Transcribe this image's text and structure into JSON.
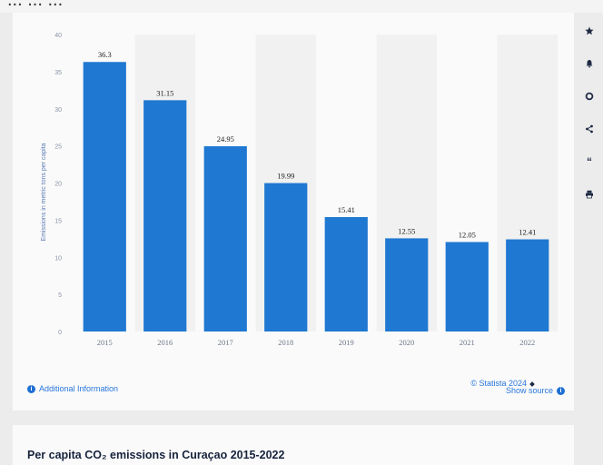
{
  "top_text": "... ... ...",
  "chart_data": {
    "type": "bar",
    "categories": [
      "2015",
      "2016",
      "2017",
      "2018",
      "2019",
      "2020",
      "2021",
      "2022"
    ],
    "values": [
      36.3,
      31.15,
      24.95,
      19.99,
      15.41,
      12.55,
      12.05,
      12.41
    ],
    "value_labels": [
      "36.3",
      "31.15",
      "24.95",
      "19.99",
      "15.41",
      "12.55",
      "12.05",
      "12.41"
    ],
    "ylabel": "Emissions in metric tons per capita",
    "ylim": [
      0,
      40
    ],
    "yticks": [
      "0",
      "5",
      "10",
      "15",
      "20",
      "25",
      "30",
      "35",
      "40"
    ],
    "bar_color": "#1f78d1",
    "grid": false
  },
  "toolbar": {
    "icons": [
      "star-icon",
      "bell-icon",
      "gear-icon",
      "share-icon",
      "quote-icon",
      "print-icon"
    ]
  },
  "footer": {
    "credit": "© Statista 2024",
    "additional_info": "Additional Information",
    "show_source": "Show source"
  },
  "bottom": {
    "title": "Per capita CO₂ emissions in Curaçao 2015-2022"
  }
}
